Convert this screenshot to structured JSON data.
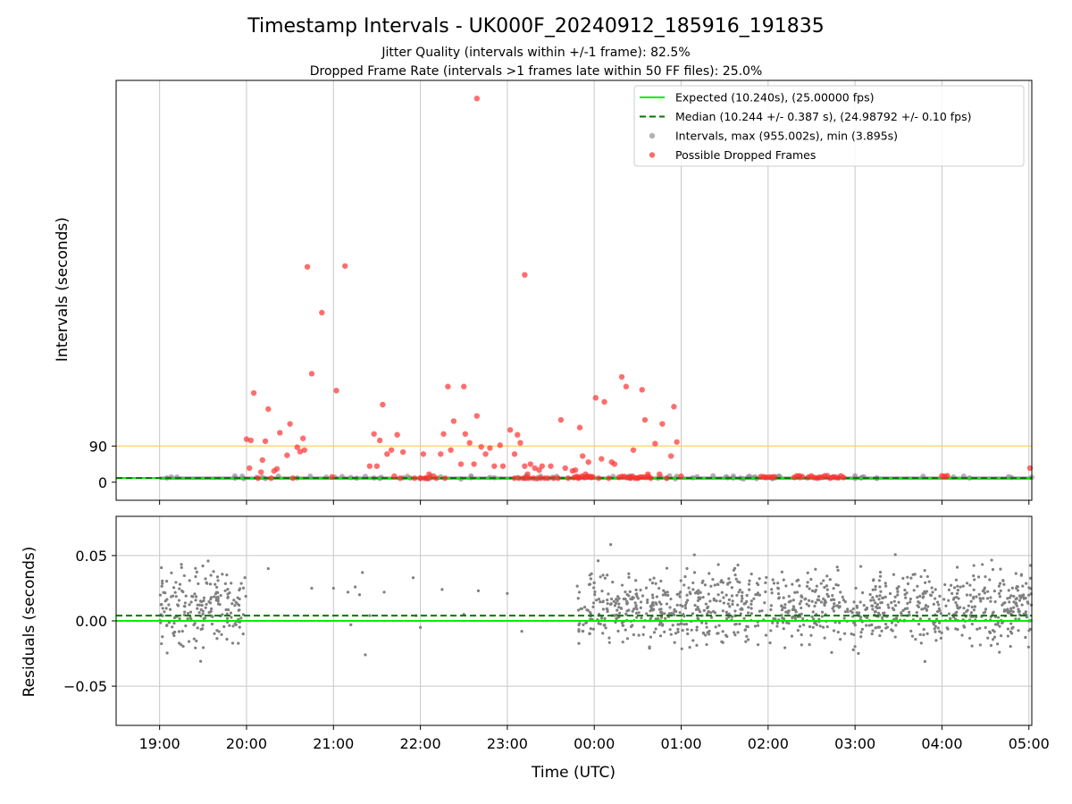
{
  "title": "Timestamp Intervals - UK000F_20240912_185916_191835",
  "subtitle_1": "Jitter Quality (intervals within +/-1 frame): 82.5%",
  "subtitle_2": "Dropped Frame Rate (intervals >1 frames late within 50 FF files): 25.0%",
  "colors": {
    "expected": "#00ee00",
    "median": "#007700",
    "intervals": "#808080",
    "dropped": "#ff3030",
    "threshold": "#ffd060",
    "grid": "#c8c8c8"
  },
  "chart_data": [
    {
      "type": "scatter",
      "name": "intervals-panel",
      "ylabel": "Intervals (seconds)",
      "ylim": [
        -45,
        1000
      ],
      "yticks": [
        {
          "value": 0,
          "label": "0"
        },
        {
          "value": 90,
          "label": "90"
        }
      ],
      "grid": "vertical",
      "threshold_line": 90,
      "legend_position": "upper right",
      "legend": [
        {
          "kind": "line-solid",
          "label": "Expected (10.240s), (25.00000 fps)"
        },
        {
          "kind": "line-dashed",
          "label": "Median (10.244 +/- 0.387 s), (24.98792 +/- 0.10 fps)"
        },
        {
          "kind": "point-gray",
          "label": "Intervals, max (955.002s), min (3.895s)"
        },
        {
          "kind": "point-red",
          "label": "Possible Dropped Frames"
        }
      ],
      "expected": 10.24,
      "median": 10.244,
      "intervals_dense_ranges": [
        [
          "19:00",
          "05:05"
        ]
      ],
      "dropped_points": [
        [
          "20:00",
          107
        ],
        [
          "20:02",
          35
        ],
        [
          "20:03",
          104
        ],
        [
          "20:05",
          222
        ],
        [
          "20:08",
          10
        ],
        [
          "20:10",
          25
        ],
        [
          "20:11",
          55
        ],
        [
          "20:13",
          102
        ],
        [
          "20:15",
          182
        ],
        [
          "20:17",
          10
        ],
        [
          "20:19",
          28
        ],
        [
          "20:21",
          33
        ],
        [
          "20:23",
          123
        ],
        [
          "20:28",
          67
        ],
        [
          "20:30",
          145
        ],
        [
          "20:32",
          10
        ],
        [
          "20:35",
          87
        ],
        [
          "20:37",
          76
        ],
        [
          "20:39",
          109
        ],
        [
          "20:40",
          80
        ],
        [
          "20:45",
          270
        ],
        [
          "20:52",
          422
        ],
        [
          "20:59",
          13
        ],
        [
          "21:02",
          228
        ],
        [
          "21:08",
          538
        ],
        [
          "21:25",
          40
        ],
        [
          "21:28",
          120
        ],
        [
          "21:30",
          40
        ],
        [
          "21:32",
          104
        ],
        [
          "21:34",
          193
        ],
        [
          "21:37",
          70
        ],
        [
          "21:40",
          80
        ],
        [
          "21:42",
          15
        ],
        [
          "21:44",
          118
        ],
        [
          "21:46",
          10
        ],
        [
          "21:48",
          75
        ],
        [
          "22:00",
          10
        ],
        [
          "22:02",
          70
        ],
        [
          "22:04",
          10
        ],
        [
          "22:06",
          20
        ],
        [
          "22:09",
          15
        ],
        [
          "22:11",
          10
        ],
        [
          "22:14",
          70
        ],
        [
          "22:16",
          120
        ],
        [
          "22:17",
          10
        ],
        [
          "22:19",
          238
        ],
        [
          "22:21",
          80
        ],
        [
          "22:23",
          152
        ],
        [
          "22:28",
          45
        ],
        [
          "22:30",
          238
        ],
        [
          "22:31",
          120
        ],
        [
          "22:34",
          98
        ],
        [
          "22:37",
          45
        ],
        [
          "22:39",
          165
        ],
        [
          "22:42",
          88
        ],
        [
          "22:45",
          70
        ],
        [
          "22:48",
          85
        ],
        [
          "22:51",
          40
        ],
        [
          "22:55",
          92
        ],
        [
          "22:57",
          40
        ],
        [
          "23:02",
          130
        ],
        [
          "23:05",
          70
        ],
        [
          "23:07",
          118
        ],
        [
          "23:09",
          98
        ],
        [
          "23:12",
          40
        ],
        [
          "23:14",
          20
        ],
        [
          "23:16",
          45
        ],
        [
          "23:19",
          35
        ],
        [
          "23:22",
          30
        ],
        [
          "23:24",
          40
        ],
        [
          "23:28",
          10
        ],
        [
          "23:30",
          40
        ],
        [
          "23:32",
          10
        ],
        [
          "23:35",
          10
        ],
        [
          "23:37",
          155
        ],
        [
          "23:40",
          35
        ],
        [
          "23:42",
          10
        ],
        [
          "23:45",
          28
        ],
        [
          "23:47",
          30
        ],
        [
          "23:49",
          10
        ],
        [
          "23:50",
          136
        ],
        [
          "23:52",
          65
        ],
        [
          "23:54",
          20
        ],
        [
          "23:56",
          50
        ],
        [
          "23:58",
          12
        ],
        [
          "00:01",
          210
        ],
        [
          "00:03",
          10
        ],
        [
          "00:05",
          58
        ],
        [
          "00:07",
          200
        ],
        [
          "00:10",
          10
        ],
        [
          "00:12",
          50
        ],
        [
          "00:14",
          45
        ],
        [
          "00:17",
          12
        ],
        [
          "00:19",
          262
        ],
        [
          "00:22",
          238
        ],
        [
          "00:25",
          10
        ],
        [
          "00:27",
          80
        ],
        [
          "00:30",
          10
        ],
        [
          "00:33",
          230
        ],
        [
          "00:35",
          155
        ],
        [
          "00:37",
          20
        ],
        [
          "00:39",
          10
        ],
        [
          "00:42",
          96
        ],
        [
          "00:45",
          20
        ],
        [
          "00:47",
          145
        ],
        [
          "00:50",
          10
        ],
        [
          "00:53",
          65
        ],
        [
          "00:55",
          188
        ],
        [
          "00:57",
          100
        ],
        [
          "01:00",
          15
        ],
        [
          "23:05",
          10
        ],
        [
          "23:08",
          10
        ],
        [
          "23:11",
          10
        ],
        [
          "23:13",
          10
        ],
        [
          "23:15",
          10
        ],
        [
          "23:18",
          10
        ],
        [
          "23:21",
          10
        ],
        [
          "23:23",
          10
        ],
        [
          "23:26",
          10
        ],
        [
          "21:56",
          10
        ],
        [
          "22:00",
          10
        ],
        [
          "22:03",
          10
        ],
        [
          "22:06",
          10
        ]
      ],
      "dropped_extremes": [
        [
          "22:39",
          955
        ],
        [
          "23:12",
          516
        ],
        [
          "20:42",
          536
        ]
      ],
      "dropped_dense_ranges": [
        [
          "23:46",
          "23:59"
        ],
        [
          "00:19",
          "00:38"
        ],
        [
          "01:55",
          "02:06"
        ],
        [
          "02:18",
          "02:24"
        ],
        [
          "02:28",
          "02:53"
        ],
        [
          "04:00",
          "04:05"
        ]
      ]
    },
    {
      "type": "scatter",
      "name": "residuals-panel",
      "ylabel": "Residuals (seconds)",
      "xlabel": "Time (UTC)",
      "ylim": [
        -0.08,
        0.08
      ],
      "yticks": [
        {
          "value": 0.05,
          "label": "0.05"
        },
        {
          "value": 0.0,
          "label": "0.00"
        },
        {
          "value": -0.05,
          "label": "−0.05"
        }
      ],
      "xticks": [
        "19:00",
        "20:00",
        "21:00",
        "22:00",
        "23:00",
        "00:00",
        "01:00",
        "02:00",
        "03:00",
        "04:00",
        "05:00"
      ],
      "xlim": [
        "18:30",
        "05:02"
      ],
      "grid": "both",
      "expected": 0.0,
      "median": 0.004,
      "residual_dense_ranges": [
        [
          "19:00",
          "20:00"
        ],
        [
          "23:48",
          "05:05"
        ]
      ],
      "residual_spread": [
        -0.03,
        0.05
      ],
      "residual_sparse_points": [
        [
          "20:15",
          0.04
        ],
        [
          "20:45",
          0.025
        ],
        [
          "21:00",
          0.025
        ],
        [
          "21:10",
          0.022
        ],
        [
          "21:12",
          -0.003
        ],
        [
          "21:15",
          0.026
        ],
        [
          "21:18",
          0.02
        ],
        [
          "21:20",
          0.037
        ],
        [
          "21:22",
          -0.026
        ],
        [
          "21:25",
          0.004
        ],
        [
          "21:35",
          0.022
        ],
        [
          "21:55",
          0.033
        ],
        [
          "21:57",
          0.004
        ],
        [
          "22:00",
          -0.005
        ],
        [
          "22:15",
          0.024
        ],
        [
          "22:30",
          0.005
        ],
        [
          "22:40",
          0.023
        ],
        [
          "23:00",
          0.021
        ],
        [
          "23:10",
          -0.008
        ]
      ]
    }
  ]
}
